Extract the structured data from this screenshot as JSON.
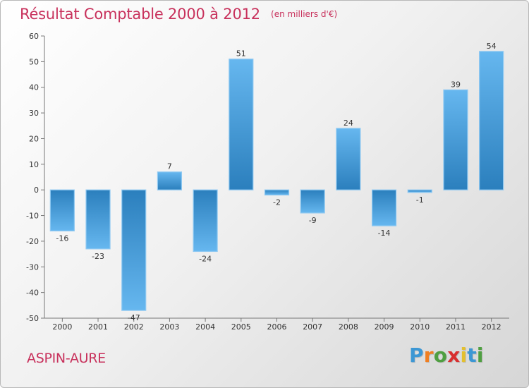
{
  "title": {
    "main": "Résultat Comptable 2000 à 2012",
    "subtitle": "(en milliers d'€)"
  },
  "commune_label": "ASPIN-AURE",
  "logo": {
    "letters": [
      "P",
      "r",
      "o",
      "x",
      "i",
      "t",
      "i"
    ],
    "colors": [
      "#3c97d4",
      "#ef7f22",
      "#4f9f41",
      "#d82f2f",
      "#e3c02f",
      "#3c97d4",
      "#4f9f41"
    ]
  },
  "chart_data": {
    "type": "bar",
    "title": "Résultat Comptable 2000 à 2012",
    "subtitle": "(en milliers d'€)",
    "xlabel": "",
    "ylabel": "",
    "categories": [
      "2000",
      "2001",
      "2002",
      "2003",
      "2004",
      "2005",
      "2006",
      "2007",
      "2008",
      "2009",
      "2010",
      "2011",
      "2012"
    ],
    "values": [
      -16,
      -23,
      -47,
      7,
      -24,
      51,
      -2,
      -9,
      24,
      -14,
      -1,
      39,
      54
    ],
    "data_labels": [
      "-16",
      "-23",
      "-47",
      "7",
      "-24",
      "51",
      "-2",
      "-9",
      "24",
      "-14",
      "-1",
      "39",
      "54"
    ],
    "yticks": [
      60,
      50,
      40,
      30,
      20,
      10,
      0,
      -10,
      -20,
      -30,
      -40,
      -50
    ],
    "ylim": [
      -50,
      60
    ],
    "grid": false,
    "colors": {
      "bar_light": "#66b7ef",
      "bar_dark": "#2b7fbd",
      "bar_edge": "#8fc9f2",
      "axis": "#777777",
      "title": "#c8315c"
    }
  }
}
